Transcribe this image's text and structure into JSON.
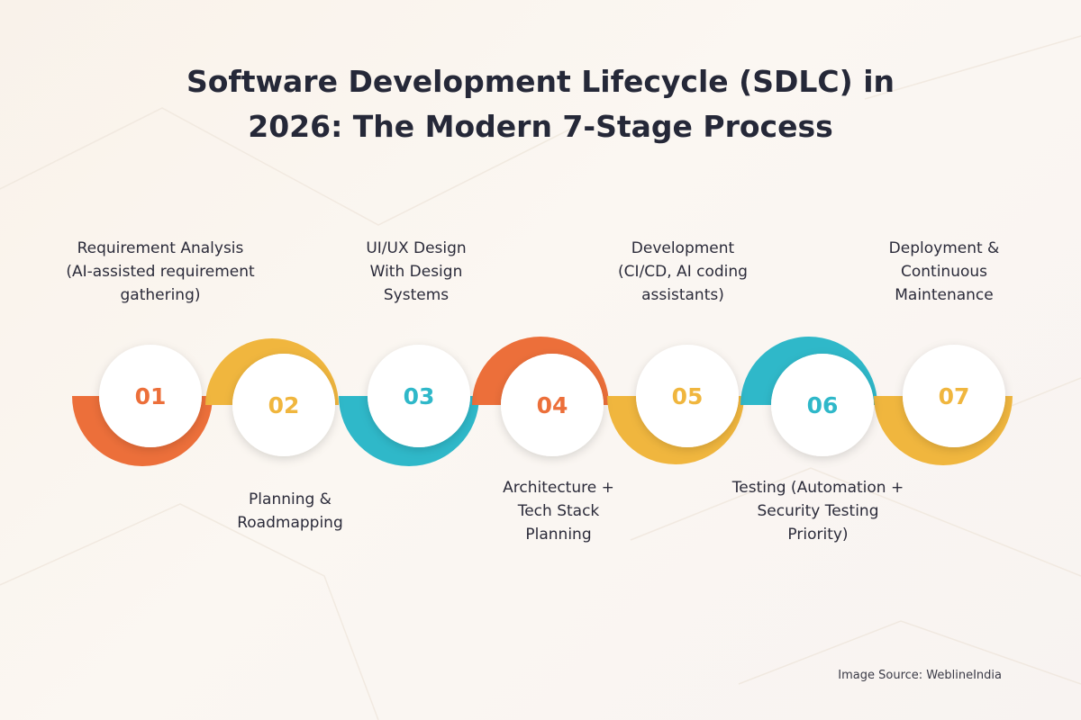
{
  "title": {
    "line1": "Software Development Lifecycle (SDLC) in",
    "line2": "2026: The Modern 7-Stage Process"
  },
  "stages": [
    {
      "number": "01",
      "lines": [
        "Requirement Analysis",
        "(AI-assisted requirement",
        "gathering)"
      ],
      "color": "#ec6f3a"
    },
    {
      "number": "02",
      "lines": [
        "Planning &",
        "Roadmapping"
      ],
      "color": "#f0b63e"
    },
    {
      "number": "03",
      "lines": [
        "UI/UX Design",
        "With Design",
        "Systems"
      ],
      "color": "#2fb8c9"
    },
    {
      "number": "04",
      "lines": [
        "Architecture +",
        "Tech Stack",
        "Planning"
      ],
      "color": "#ec6f3a"
    },
    {
      "number": "05",
      "lines": [
        "Development",
        "(CI/CD, AI coding",
        "assistants)"
      ],
      "color": "#f0b63e"
    },
    {
      "number": "06",
      "lines": [
        "Testing (Automation +",
        "Security Testing",
        "Priority)"
      ],
      "color": "#2fb8c9"
    },
    {
      "number": "07",
      "lines": [
        "Deployment &",
        "Continuous",
        "Maintenance"
      ],
      "color": "#f0b63e"
    }
  ],
  "source": "Image Source: WeblineIndia"
}
